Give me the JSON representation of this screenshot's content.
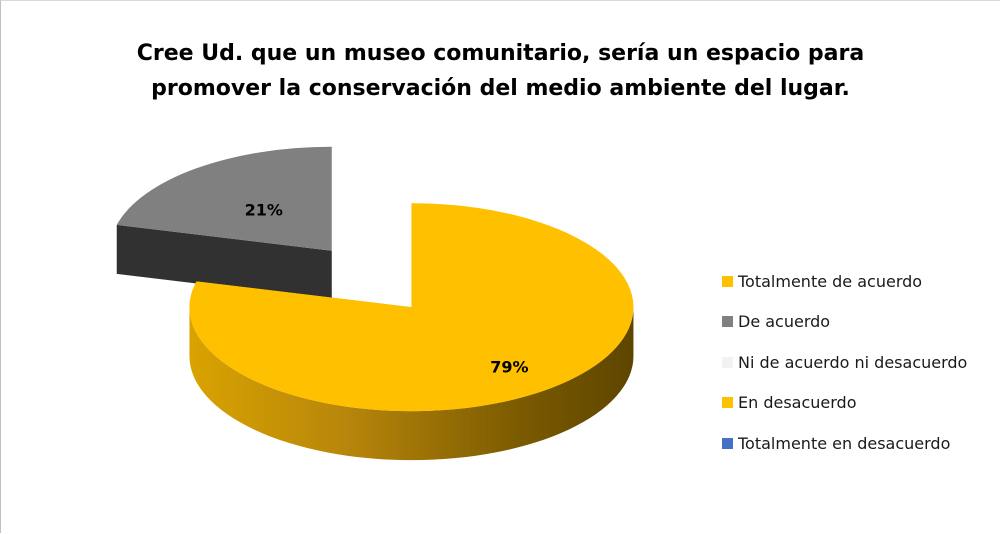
{
  "chart_data": {
    "type": "pie",
    "title_lines": [
      "Cree Ud. que un museo comunitario, sería un espacio para",
      "promover la conservación del medio ambiente del lugar."
    ],
    "slices": [
      {
        "label": "Totalmente de acuerdo",
        "value": 79,
        "data_label": "79%",
        "color": "#FFC000"
      },
      {
        "label": "De acuerdo",
        "value": 21,
        "data_label": "21%",
        "color": "#808080"
      },
      {
        "label": "Ni de acuerdo ni desacuerdo",
        "value": 0,
        "data_label": "",
        "color": "#F2F2F2"
      },
      {
        "label": "En desacuerdo",
        "value": 0,
        "data_label": "",
        "color": "#FFC000"
      },
      {
        "label": "Totalmente en desacuerdo",
        "value": 0,
        "data_label": "",
        "color": "#4472C4"
      }
    ],
    "legend_position": "right",
    "style": "3d-exploded"
  }
}
